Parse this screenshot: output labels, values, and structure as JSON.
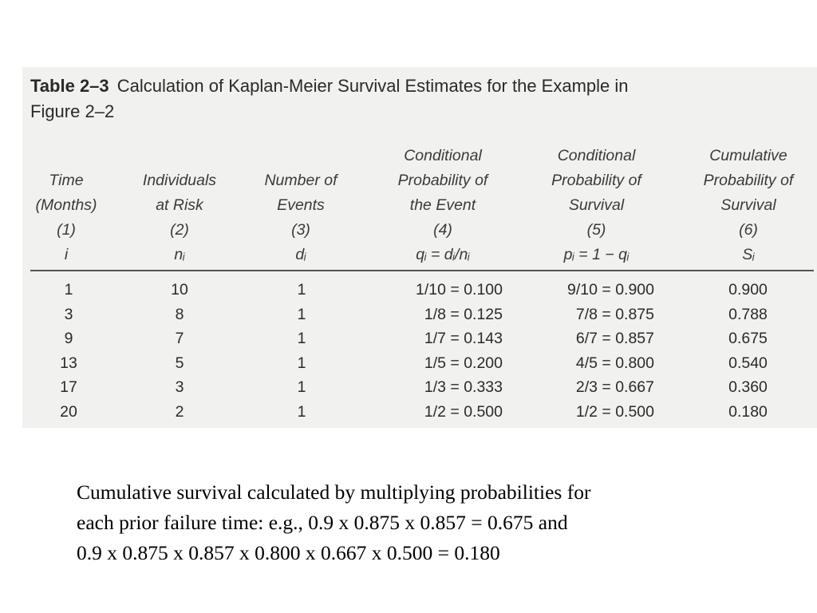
{
  "table": {
    "label": "Table 2–3",
    "title_line1": "Calculation of Kaplan-Meier Survival Estimates for the Example in",
    "title_line2": "Figure 2–2",
    "headers": [
      [
        "",
        "Time",
        "(Months)",
        "(1)",
        "i"
      ],
      [
        "",
        "Individuals",
        "at Risk",
        "(2)",
        "nᵢ"
      ],
      [
        "",
        "Number of",
        "Events",
        "(3)",
        "dᵢ"
      ],
      [
        "Conditional",
        "Probability of",
        "the Event",
        "(4)",
        "qᵢ = dᵢ/nᵢ"
      ],
      [
        "Conditional",
        "Probability of",
        "Survival",
        "(5)",
        "pᵢ = 1 − qᵢ"
      ],
      [
        "Cumulative",
        "Probability of",
        "Survival",
        "(6)",
        "Sᵢ"
      ]
    ],
    "rows": [
      [
        "1",
        "10",
        "1",
        "1/10 = 0.100",
        "9/10 = 0.900",
        "0.900"
      ],
      [
        "3",
        "8",
        "1",
        "1/8 = 0.125",
        "7/8 = 0.875",
        "0.788"
      ],
      [
        "9",
        "7",
        "1",
        "1/7 = 0.143",
        "6/7 = 0.857",
        "0.675"
      ],
      [
        "13",
        "5",
        "1",
        "1/5 = 0.200",
        "4/5 = 0.800",
        "0.540"
      ],
      [
        "17",
        "3",
        "1",
        "1/3 = 0.333",
        "2/3 = 0.667",
        "0.360"
      ],
      [
        "20",
        "2",
        "1",
        "1/2 = 0.500",
        "1/2 = 0.500",
        "0.180"
      ]
    ]
  },
  "note": {
    "line1": "Cumulative survival calculated by multiplying probabilities for",
    "line2": "each prior failure time:  e.g., 0.9 x 0.875 x 0.857 = 0.675  and",
    "line3": "0.9 x 0.875 x 0.857 x 0.800 x 0.667 x 0.500 = 0.180"
  }
}
